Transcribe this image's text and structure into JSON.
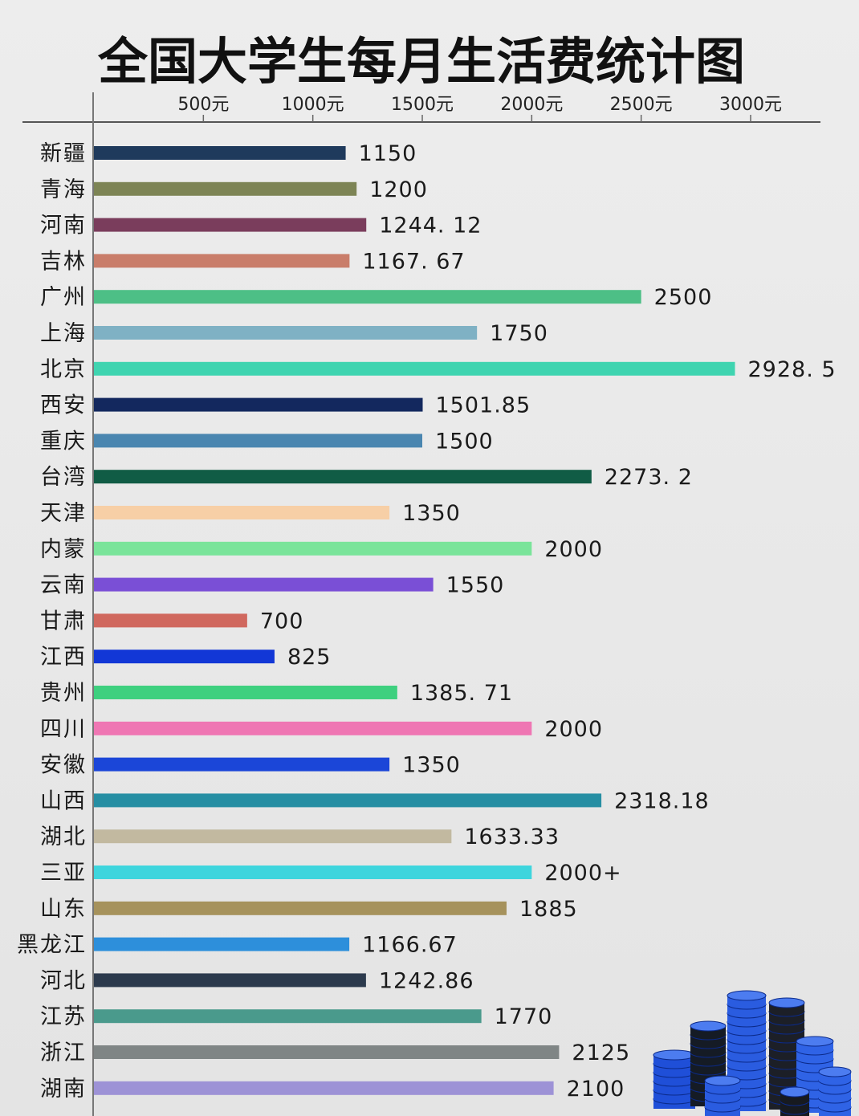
{
  "chart_data": {
    "type": "bar",
    "orientation": "horizontal",
    "title": "全国大学生每月生活费统计图",
    "xlabel": "",
    "ylabel": "",
    "xlim": [
      0,
      3000
    ],
    "x_ticks": [
      "500元",
      "1000元",
      "1500元",
      "2000元",
      "2500元",
      "3000元"
    ],
    "grid": false,
    "legend": "none",
    "categories": [
      "新疆",
      "青海",
      "河南",
      "吉林",
      "广州",
      "上海",
      "北京",
      "西安",
      "重庆",
      "台湾",
      "天津",
      "内蒙",
      "云南",
      "甘肃",
      "江西",
      "贵州",
      "四川",
      "安徽",
      "山西",
      "湖北",
      "三亚",
      "山东",
      "黑龙江",
      "河北",
      "江苏",
      "浙江",
      "湖南"
    ],
    "values": [
      1150,
      1200,
      1244.12,
      1167.67,
      2500,
      1750,
      2928.5,
      1501.85,
      1500,
      2273.2,
      1350,
      2000,
      1550,
      700,
      825,
      1385.71,
      2000,
      1350,
      2318.18,
      1633.33,
      2000,
      1885,
      1166.67,
      1242.86,
      1770,
      2125,
      2100
    ],
    "value_labels": [
      "1150",
      "1200",
      "1244. 12",
      "1167. 67",
      "2500",
      "1750",
      "2928. 5",
      "1501.85",
      "1500",
      "2273. 2",
      "1350",
      "2000",
      "1550",
      "700",
      "825",
      "1385. 71",
      "2000",
      "1350",
      "2318.18",
      "1633.33",
      "2000+",
      "1885",
      "1166.67",
      "1242.86",
      "1770",
      "2125",
      "2100"
    ],
    "colors": [
      "#1f3a5c",
      "#7d8455",
      "#7a3d5c",
      "#c97d6a",
      "#4dbf86",
      "#7fb1c4",
      "#3fd4b0",
      "#13285e",
      "#4a86b0",
      "#105c45",
      "#f7cfa6",
      "#7ae49a",
      "#7a4fd6",
      "#d0685e",
      "#1237d6",
      "#3ed07f",
      "#ef76b3",
      "#1b46d8",
      "#268ea3",
      "#c2b9a0",
      "#3ed5dd",
      "#a6925c",
      "#2d8fdb",
      "#2c3a4d",
      "#4a9a8c",
      "#7f8585",
      "#9d92d6"
    ],
    "decoration": "blue-coin-stacks-icon"
  }
}
